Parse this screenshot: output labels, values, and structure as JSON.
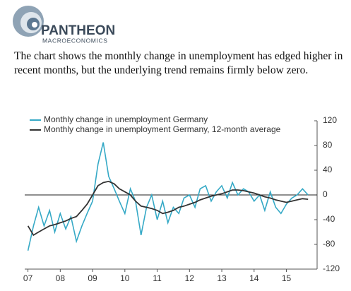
{
  "header": {
    "brand": "PANTHEON",
    "tagline": "MACROECONOMICS"
  },
  "caption": "The chart shows the monthly change in unemployment has edged higher in recent months, but the underlying trend remains firmly below zero.",
  "chart_data": {
    "type": "line",
    "x": [
      2007,
      2007.17,
      2007.33,
      2007.5,
      2007.67,
      2007.83,
      2008,
      2008.17,
      2008.33,
      2008.5,
      2008.67,
      2008.83,
      2009,
      2009.17,
      2009.33,
      2009.5,
      2009.67,
      2009.83,
      2010,
      2010.17,
      2010.33,
      2010.5,
      2010.67,
      2010.83,
      2011,
      2011.17,
      2011.33,
      2011.5,
      2011.67,
      2011.83,
      2012,
      2012.17,
      2012.33,
      2012.5,
      2012.67,
      2012.83,
      2013,
      2013.17,
      2013.33,
      2013.5,
      2013.67,
      2013.83,
      2014,
      2014.17,
      2014.33,
      2014.5,
      2014.67,
      2014.83,
      2015,
      2015.17,
      2015.33,
      2015.5,
      2015.67
    ],
    "series": [
      {
        "name": "Monthly change in unemployment Germany",
        "color": "#35a9c6",
        "values": [
          -90,
          -50,
          -20,
          -50,
          -25,
          -60,
          -30,
          -55,
          -35,
          -75,
          -50,
          -30,
          -10,
          50,
          85,
          30,
          10,
          -10,
          -30,
          10,
          -10,
          -65,
          -20,
          0,
          -40,
          -10,
          -45,
          -20,
          -30,
          -5,
          0,
          -20,
          10,
          15,
          -10,
          5,
          15,
          -5,
          20,
          0,
          10,
          5,
          -10,
          0,
          -25,
          5,
          -20,
          -30,
          -15,
          -5,
          0,
          10,
          0
        ]
      },
      {
        "name": "Monthly change in unemployment Germany, 12-month average",
        "color": "#333333",
        "values": [
          -50,
          -65,
          -60,
          -55,
          -50,
          -48,
          -45,
          -42,
          -38,
          -35,
          -25,
          -15,
          0,
          15,
          20,
          22,
          18,
          10,
          5,
          0,
          -10,
          -18,
          -20,
          -22,
          -25,
          -30,
          -28,
          -25,
          -20,
          -18,
          -15,
          -12,
          -8,
          -5,
          -2,
          0,
          2,
          5,
          8,
          8,
          7,
          5,
          3,
          0,
          -3,
          -5,
          -8,
          -10,
          -12,
          -10,
          -8,
          -6,
          -7
        ]
      }
    ],
    "xlim": [
      2006.9,
      2015.95
    ],
    "xticks": [
      {
        "value": 2007,
        "label": "07"
      },
      {
        "value": 2008,
        "label": "08"
      },
      {
        "value": 2009,
        "label": "09"
      },
      {
        "value": 2010,
        "label": "10"
      },
      {
        "value": 2011,
        "label": "11"
      },
      {
        "value": 2012,
        "label": "12"
      },
      {
        "value": 2013,
        "label": "13"
      },
      {
        "value": 2014,
        "label": "14"
      },
      {
        "value": 2015,
        "label": "15"
      }
    ],
    "ylim": [
      -120,
      120
    ],
    "yticks": [
      -120,
      -80,
      -40,
      0,
      40,
      80,
      120
    ]
  }
}
